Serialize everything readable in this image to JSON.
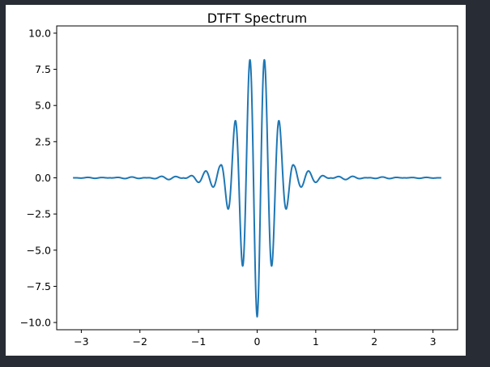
{
  "chart_data": {
    "type": "line",
    "title": "DTFT Spectrum",
    "xlabel": "",
    "ylabel": "",
    "xlim": [
      -3.42,
      3.42
    ],
    "ylim": [
      -10.5,
      10.5
    ],
    "xticks": [
      -3,
      -2,
      -1,
      0,
      1,
      2,
      3
    ],
    "xtick_labels": [
      "−3",
      "−2",
      "−1",
      "0",
      "1",
      "2",
      "3"
    ],
    "yticks": [
      10.0,
      7.5,
      5.0,
      2.5,
      0.0,
      -2.5,
      -5.0,
      -7.5,
      -10.0
    ],
    "ytick_labels": [
      "10.0",
      "7.5",
      "5.0",
      "2.5",
      "0.0",
      "−2.5",
      "−5.0",
      "−7.5",
      "−10.0"
    ],
    "grid": false,
    "series": [
      {
        "color": "#1f77b4",
        "x_range": [
          -3.14159,
          3.14159
        ],
        "peak_amplitude": 9.6,
        "carrier_frequency": 25,
        "envelope_frequency": 5
      }
    ]
  }
}
